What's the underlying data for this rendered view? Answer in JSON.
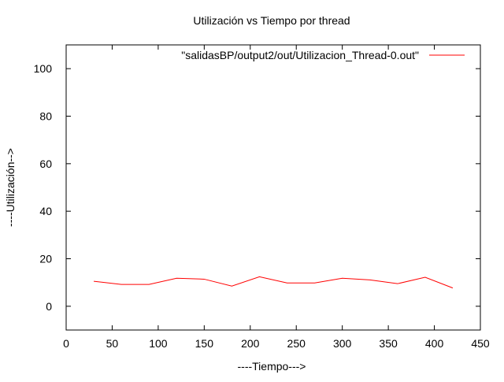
{
  "chart_data": {
    "type": "line",
    "title": "Utilización vs Tiempo por thread",
    "xlabel": "----Tiempo--->",
    "ylabel": "----Utilización-->",
    "xlim": [
      0,
      450
    ],
    "ylim": [
      -10,
      110
    ],
    "xticks": [
      0,
      50,
      100,
      150,
      200,
      250,
      300,
      350,
      400,
      450
    ],
    "yticks": [
      0,
      20,
      40,
      60,
      80,
      100
    ],
    "grid": false,
    "legend_position": "top-right",
    "series": [
      {
        "name": "\"salidasBP/output2/out/Utilizacion_Thread-0.out\"",
        "color": "#ff0000",
        "x": [
          30,
          60,
          90,
          120,
          150,
          180,
          210,
          240,
          270,
          300,
          330,
          360,
          390,
          420
        ],
        "y": [
          10.5,
          9.2,
          9.2,
          11.8,
          11.4,
          8.5,
          12.4,
          9.8,
          9.8,
          11.8,
          11.1,
          9.5,
          12.2,
          7.7
        ]
      }
    ]
  }
}
